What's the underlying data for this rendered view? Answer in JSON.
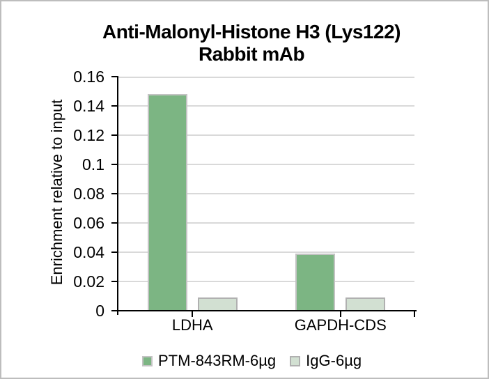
{
  "window": {
    "background": "#ffffff",
    "frame_border_color": "#bdbdbd"
  },
  "chart_data": {
    "type": "bar",
    "title_lines": [
      "Anti-Malonyl-Histone H3 (Lys122)",
      "Rabbit mAb"
    ],
    "ylabel": "Enrichment relative to input",
    "categories": [
      "LDHA",
      "GAPDH-CDS"
    ],
    "series": [
      {
        "name": "PTM-843RM-6µg",
        "values": [
          0.148,
          0.039
        ],
        "fill": "#7cb583",
        "border": "#c3c3c3"
      },
      {
        "name": "IgG-6µg",
        "values": [
          0.009,
          0.009
        ],
        "fill": "#d2e0d2",
        "border": "#b0b0b0"
      }
    ],
    "ylim": [
      0,
      0.16
    ],
    "ytick_step": 0.02,
    "ytick_labels": [
      "0",
      "0.02",
      "0.04",
      "0.06",
      "0.08",
      "0.1",
      "0.12",
      "0.14",
      "0.16"
    ],
    "ytick_values": [
      0,
      0.02,
      0.04,
      0.06,
      0.08,
      0.1,
      0.12,
      0.14,
      0.16
    ],
    "grid": true,
    "gridline_color": "#d9d9d9",
    "axis_color": "#000000",
    "legend_position": "bottom"
  }
}
